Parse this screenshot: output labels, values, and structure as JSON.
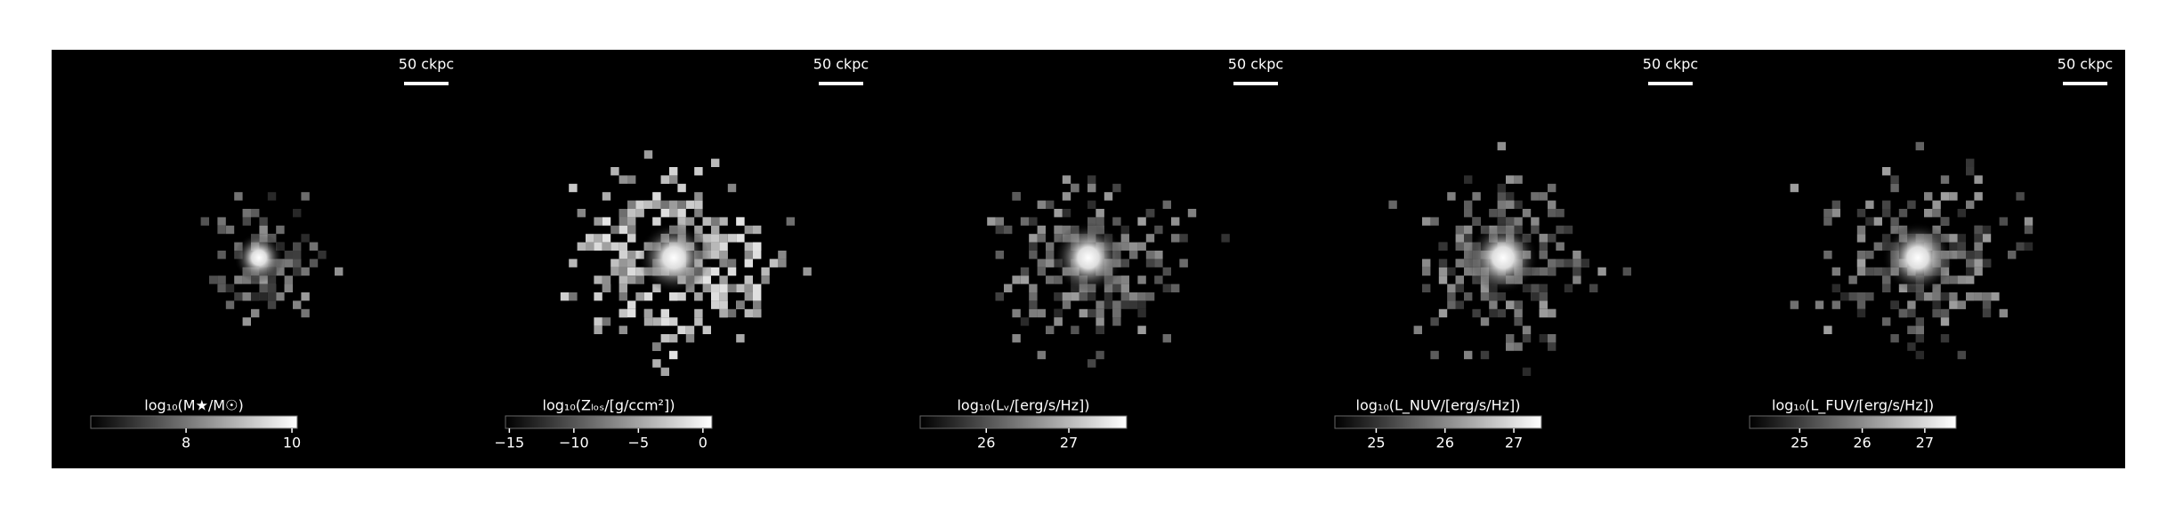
{
  "chart_data": [
    {
      "type": "image",
      "scalebar_label": "50 ckpc",
      "colorbar_label": "log₁₀(M★/M☉)",
      "clim": [
        6.2,
        10.1
      ],
      "cticks": [
        8,
        10
      ]
    },
    {
      "type": "image",
      "scalebar_label": "50 ckpc",
      "colorbar_label": "log₁₀(Zₗₒₛ/[g/ccm²])",
      "clim": [
        -15.3,
        0.7
      ],
      "cticks": [
        {
          "value": -15,
          "label": "−15"
        },
        {
          "value": -10,
          "label": "−10"
        },
        {
          "value": -5,
          "label": "−5"
        },
        0
      ]
    },
    {
      "type": "image",
      "scalebar_label": "50 ckpc",
      "colorbar_label": "log₁₀(Lᵥ/[erg/s/Hz])",
      "clim": [
        25.2,
        27.7
      ],
      "cticks": [
        26,
        27
      ]
    },
    {
      "type": "image",
      "scalebar_label": "50 ckpc",
      "colorbar_label": "log₁₀(L_NUV/[erg/s/Hz])",
      "clim": [
        24.4,
        27.4
      ],
      "cticks": [
        25,
        26,
        27
      ]
    },
    {
      "type": "image",
      "scalebar_label": "50 ckpc",
      "colorbar_label": "log₁₀(L_FUV/[erg/s/Hz])",
      "clim": [
        24.2,
        27.5
      ],
      "cticks": [
        25,
        26,
        27
      ]
    }
  ]
}
